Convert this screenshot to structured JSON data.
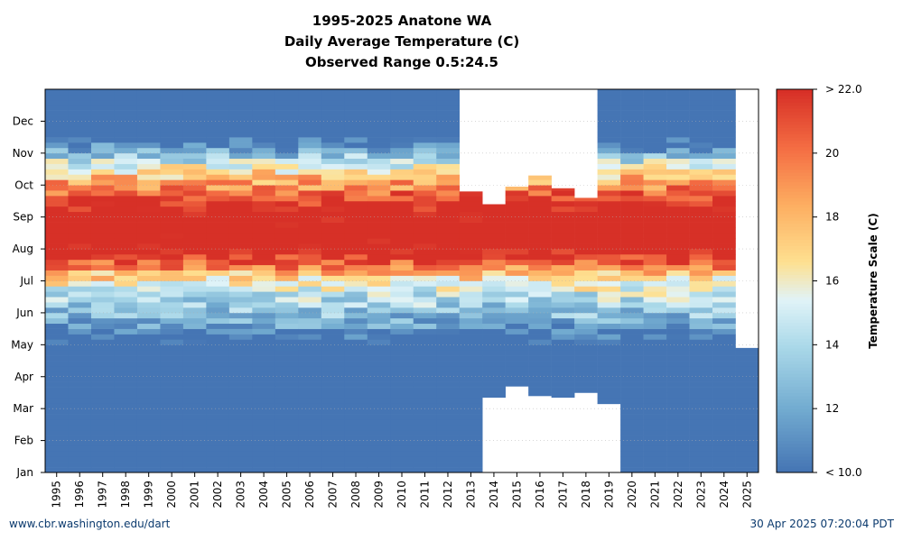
{
  "title_lines": [
    "1995-2025 Anatone WA",
    "Daily Average Temperature (C)",
    "Observed Range 0.5:24.5"
  ],
  "footer": {
    "left": "www.cbr.washington.edu/dart",
    "right": "30 Apr 2025 07:20:04 PDT"
  },
  "chart_data": {
    "type": "heatmap",
    "title": "1995-2025 Anatone WA — Daily Average Temperature (C)",
    "subtitle": "Observed Range 0.5:24.5",
    "x": [
      "1995",
      "1996",
      "1997",
      "1998",
      "1999",
      "2000",
      "2001",
      "2002",
      "2003",
      "2004",
      "2005",
      "2006",
      "2007",
      "2008",
      "2009",
      "2010",
      "2011",
      "2012",
      "2013",
      "2014",
      "2015",
      "2016",
      "2017",
      "2018",
      "2019",
      "2020",
      "2021",
      "2022",
      "2023",
      "2024",
      "2025"
    ],
    "y_ticks": [
      "Jan",
      "Feb",
      "Mar",
      "Apr",
      "May",
      "Jun",
      "Jul",
      "Aug",
      "Sep",
      "Oct",
      "Nov",
      "Dec"
    ],
    "y_range_months": [
      0,
      12
    ],
    "colorbar": {
      "label": "Temperature Scale (C)",
      "min": 10.0,
      "max": 22.0,
      "ticks": [
        "< 10.0",
        "12",
        "14",
        "16",
        "18",
        "20",
        "> 22.0"
      ]
    },
    "data_coverage_months": [
      [
        0,
        12
      ],
      [
        0,
        12
      ],
      [
        0,
        12
      ],
      [
        0,
        12
      ],
      [
        0,
        12
      ],
      [
        0,
        12
      ],
      [
        0,
        12
      ],
      [
        0,
        12
      ],
      [
        0,
        12
      ],
      [
        0,
        12
      ],
      [
        0,
        12
      ],
      [
        0,
        12
      ],
      [
        0,
        12
      ],
      [
        0,
        12
      ],
      [
        0,
        12
      ],
      [
        0,
        12
      ],
      [
        0,
        12
      ],
      [
        0,
        12
      ],
      [
        0,
        8.8
      ],
      [
        2.35,
        8.4
      ],
      [
        2.7,
        8.95
      ],
      [
        2.4,
        9.3
      ],
      [
        2.35,
        8.9
      ],
      [
        2.5,
        8.6
      ],
      [
        2.15,
        12
      ],
      [
        0,
        12
      ],
      [
        0,
        12
      ],
      [
        0,
        12
      ],
      [
        0,
        12
      ],
      [
        0,
        12
      ],
      [
        0,
        3.9
      ]
    ],
    "profile_note": "Cooler than 10 C roughly Nov-Apr; peak above 22 C mid-July to late August",
    "grid": true
  }
}
